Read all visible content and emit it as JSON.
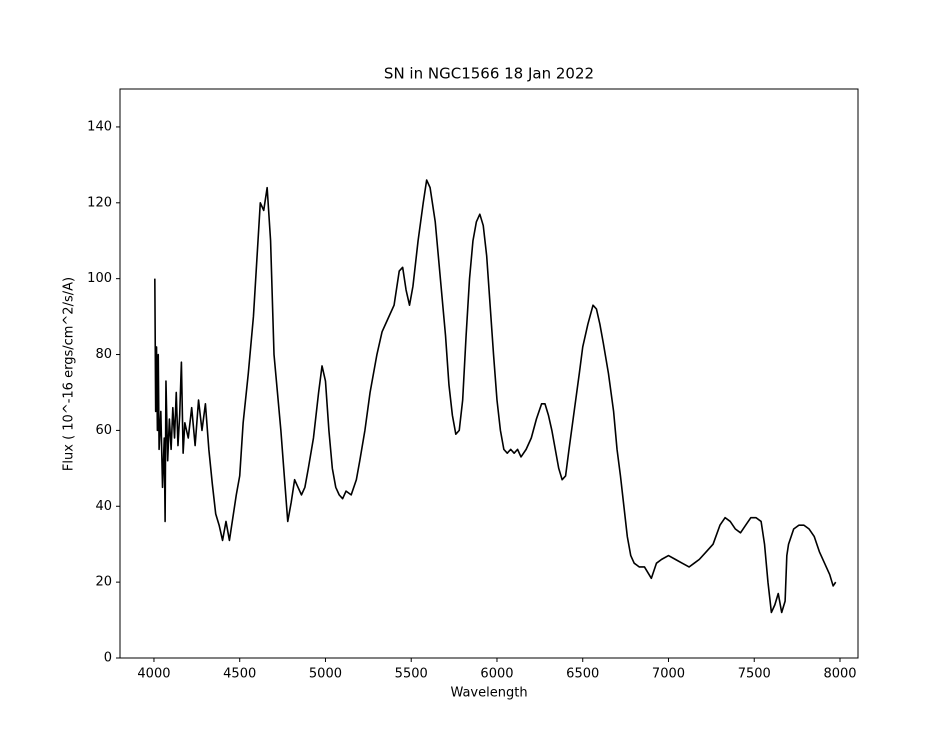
{
  "chart_data": {
    "type": "line",
    "title": "SN in NGC1566 18 Jan 2022",
    "x_label": "Wavelength",
    "y_label": "Flux ( 10^-16 ergs/cm^2/s/A)",
    "color": "#000000",
    "x": [
      4005,
      4010,
      4015,
      4020,
      4025,
      4030,
      4040,
      4050,
      4060,
      4065,
      4070,
      4080,
      4090,
      4100,
      4110,
      4120,
      4130,
      4140,
      4150,
      4160,
      4170,
      4180,
      4200,
      4220,
      4240,
      4260,
      4280,
      4300,
      4320,
      4340,
      4360,
      4380,
      4400,
      4420,
      4440,
      4460,
      4480,
      4500,
      4520,
      4550,
      4580,
      4600,
      4620,
      4640,
      4660,
      4680,
      4700,
      4720,
      4740,
      4760,
      4780,
      4800,
      4820,
      4840,
      4860,
      4880,
      4900,
      4930,
      4960,
      4980,
      5000,
      5020,
      5040,
      5060,
      5080,
      5100,
      5120,
      5150,
      5180,
      5200,
      5230,
      5260,
      5300,
      5330,
      5360,
      5400,
      5430,
      5450,
      5470,
      5490,
      5510,
      5540,
      5570,
      5590,
      5610,
      5640,
      5670,
      5700,
      5720,
      5740,
      5760,
      5780,
      5800,
      5820,
      5840,
      5860,
      5880,
      5900,
      5920,
      5940,
      5960,
      5980,
      6000,
      6020,
      6040,
      6060,
      6080,
      6100,
      6120,
      6140,
      6170,
      6200,
      6230,
      6260,
      6280,
      6300,
      6320,
      6340,
      6360,
      6380,
      6400,
      6420,
      6450,
      6480,
      6500,
      6530,
      6560,
      6580,
      6600,
      6620,
      6650,
      6680,
      6700,
      6720,
      6740,
      6760,
      6780,
      6800,
      6830,
      6860,
      6900,
      6930,
      6960,
      7000,
      7040,
      7080,
      7120,
      7150,
      7180,
      7220,
      7260,
      7300,
      7330,
      7360,
      7390,
      7420,
      7450,
      7480,
      7510,
      7540,
      7560,
      7580,
      7600,
      7620,
      7640,
      7660,
      7680,
      7690,
      7700,
      7730,
      7760,
      7790,
      7820,
      7850,
      7880,
      7910,
      7940,
      7960,
      7975
    ],
    "values": [
      100,
      65,
      82,
      60,
      80,
      55,
      65,
      45,
      58,
      36,
      73,
      52,
      63,
      55,
      66,
      58,
      70,
      56,
      64,
      78,
      54,
      62,
      58,
      66,
      56,
      68,
      60,
      67,
      55,
      46,
      38,
      35,
      31,
      36,
      31,
      37,
      43,
      48,
      62,
      75,
      90,
      105,
      120,
      118,
      124,
      110,
      80,
      70,
      60,
      48,
      36,
      41,
      47,
      45,
      43,
      45,
      50,
      58,
      70,
      77,
      73,
      60,
      50,
      45,
      43,
      42,
      44,
      43,
      47,
      52,
      60,
      70,
      80,
      86,
      89,
      93,
      102,
      103,
      97,
      93,
      98,
      110,
      120,
      126,
      124,
      115,
      100,
      85,
      72,
      64,
      59,
      60,
      68,
      85,
      100,
      110,
      115,
      117,
      114,
      106,
      93,
      80,
      68,
      60,
      55,
      54,
      55,
      54,
      55,
      53,
      55,
      58,
      63,
      67,
      67,
      64,
      60,
      55,
      50,
      47,
      48,
      55,
      65,
      75,
      82,
      88,
      93,
      92,
      88,
      83,
      75,
      65,
      55,
      48,
      40,
      32,
      27,
      25,
      24,
      24,
      21,
      25,
      26,
      27,
      26,
      25,
      24,
      25,
      26,
      28,
      30,
      35,
      37,
      36,
      34,
      33,
      35,
      37,
      37,
      36,
      30,
      20,
      12,
      14,
      17,
      12,
      15,
      27,
      30,
      34,
      35,
      35,
      34,
      32,
      28,
      25,
      22,
      19,
      20
    ],
    "xlim": [
      3802,
      8105
    ],
    "ylim": [
      0,
      150
    ],
    "xticks": [
      4000,
      4500,
      5000,
      5500,
      6000,
      6500,
      7000,
      7500,
      8000
    ],
    "yticks": [
      0,
      20,
      40,
      60,
      80,
      100,
      120,
      140
    ]
  }
}
